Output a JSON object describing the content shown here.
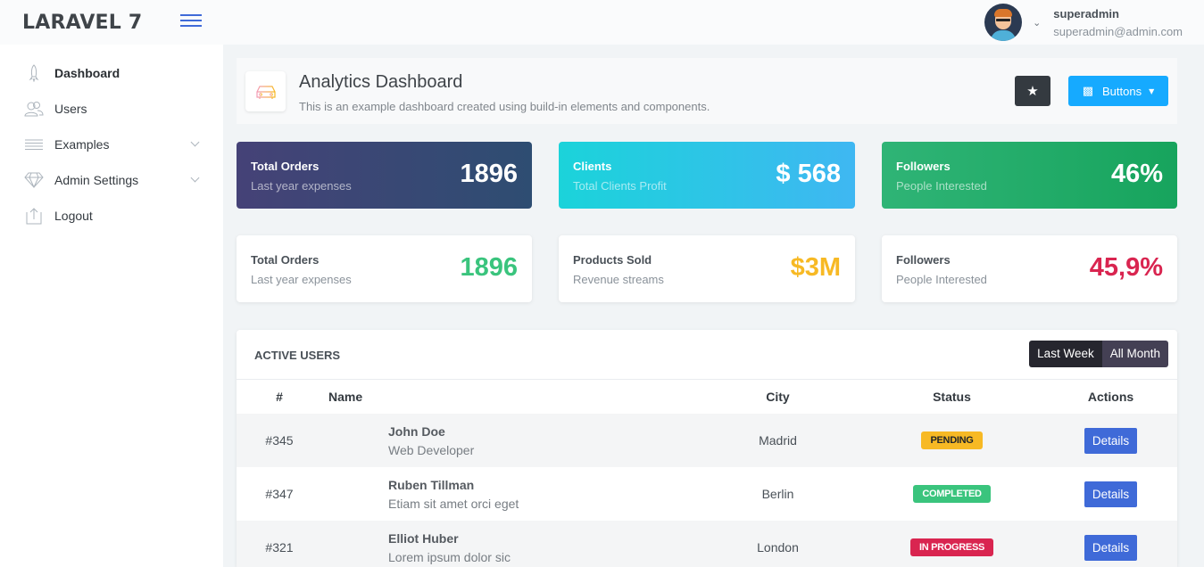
{
  "header": {
    "logo": "LARAVEL 7",
    "user_name": "superadmin",
    "user_email": "superadmin@admin.com"
  },
  "sidebar": {
    "items": [
      {
        "label": "Dashboard",
        "icon": "rocket-icon"
      },
      {
        "label": "Users",
        "icon": "users-icon"
      },
      {
        "label": "Examples",
        "icon": "menu-lines-icon"
      },
      {
        "label": "Admin Settings",
        "icon": "diamond-icon"
      },
      {
        "label": "Logout",
        "icon": "logout-icon"
      }
    ]
  },
  "title_bar": {
    "title": "Analytics Dashboard",
    "subtitle": "This is an example dashboard created using build-in elements and components.",
    "buttons_label": "Buttons"
  },
  "cards_row1": [
    {
      "title": "Total Orders",
      "subtitle": "Last year expenses",
      "value": "1896"
    },
    {
      "title": "Clients",
      "subtitle": "Total Clients Profit",
      "value": "$ 568"
    },
    {
      "title": "Followers",
      "subtitle": "People Interested",
      "value": "46%"
    }
  ],
  "cards_row2": [
    {
      "title": "Total Orders",
      "subtitle": "Last year expenses",
      "value": "1896",
      "color": "#3ac47d"
    },
    {
      "title": "Products Sold",
      "subtitle": "Revenue streams",
      "value": "$3M",
      "color": "#f7b924"
    },
    {
      "title": "Followers",
      "subtitle": "People Interested",
      "value": "45,9%",
      "color": "#d92550"
    }
  ],
  "active_users": {
    "title": "ACTIVE USERS",
    "toggle": [
      "Last Week",
      "All Month"
    ],
    "columns": [
      "#",
      "Name",
      "City",
      "Status",
      "Actions"
    ],
    "rows": [
      {
        "id": "#345",
        "name": "John Doe",
        "role": "Web Developer",
        "city": "Madrid",
        "status": "PENDING",
        "action": "Details"
      },
      {
        "id": "#347",
        "name": "Ruben Tillman",
        "role": "Etiam sit amet orci eget",
        "city": "Berlin",
        "status": "COMPLETED",
        "action": "Details"
      },
      {
        "id": "#321",
        "name": "Elliot Huber",
        "role": "Lorem ipsum dolor sic",
        "city": "London",
        "status": "IN PROGRESS",
        "action": "Details"
      }
    ]
  },
  "colors": {
    "accent": "#3f6ad8",
    "info": "#16aaff",
    "success": "#3ac47d",
    "warning": "#f7b924",
    "danger": "#d92550"
  }
}
